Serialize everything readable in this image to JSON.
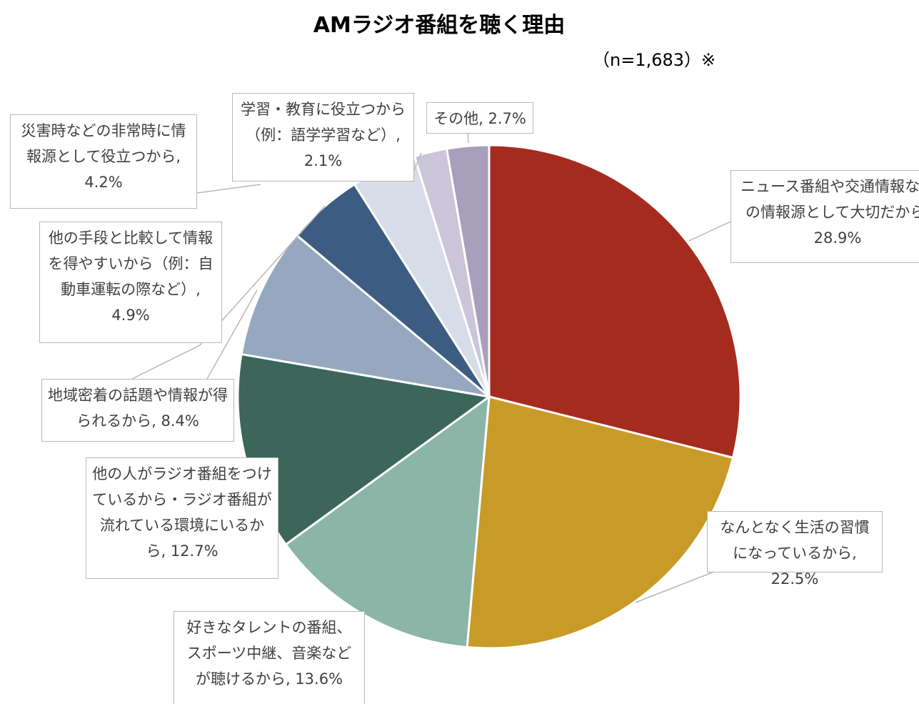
{
  "chart_data": {
    "type": "pie",
    "title": "AMラジオ番組を聴く理由",
    "subtitle": "（n=1,683）※",
    "categories": [
      "ニュース番組や交通情報などの情報源として大切だから",
      "なんとなく生活の習慣になっているから",
      "好きなタレントの番組、スポーツ中継、音楽などが聴けるから",
      "他の人がラジオ番組をつけているから・ラジオ番組が流れている環境にいるから",
      "地域密着の話題や情報が得られるから",
      "他の手段と比較して情報を得やすいから（例：自動車運転の際など）",
      "災害時などの非常時に情報源として役立つから",
      "学習・教育に役立つから（例：語学学習など）",
      "その他"
    ],
    "values": [
      28.9,
      22.5,
      13.6,
      12.7,
      8.4,
      4.9,
      4.2,
      2.1,
      2.7
    ],
    "value_labels": [
      ", 28.9%",
      ", 22.5%",
      ", 13.6%",
      ", 12.7%",
      ", 8.4%",
      ", 4.9%",
      ", 4.2%",
      ", 2.1%",
      ", 2.7%"
    ],
    "colors": [
      "#a62b1f",
      "#c89b28",
      "#8ab5a7",
      "#3c6659",
      "#95a8c0",
      "#3d5c82",
      "#d6dde8",
      "#cbc5d9",
      "#a89fbd"
    ]
  }
}
